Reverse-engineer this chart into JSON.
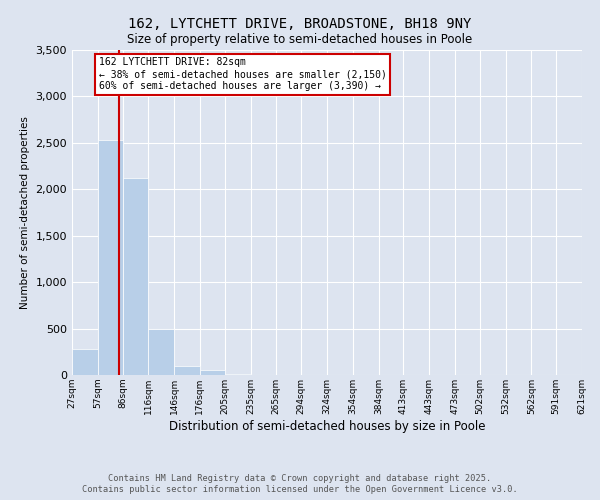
{
  "title": "162, LYTCHETT DRIVE, BROADSTONE, BH18 9NY",
  "subtitle": "Size of property relative to semi-detached houses in Poole",
  "xlabel": "Distribution of semi-detached houses by size in Poole",
  "ylabel": "Number of semi-detached properties",
  "bar_color": "#b8cfe8",
  "background_color": "#dde4f0",
  "grid_color": "#ffffff",
  "marker_color": "#cc0000",
  "marker_value": 82,
  "annotation_text": "162 LYTCHETT DRIVE: 82sqm\n← 38% of semi-detached houses are smaller (2,150)\n60% of semi-detached houses are larger (3,390) →",
  "annotation_box_color": "#ffffff",
  "annotation_edge_color": "#cc0000",
  "footer_text": "Contains HM Land Registry data © Crown copyright and database right 2025.\nContains public sector information licensed under the Open Government Licence v3.0.",
  "bin_edges": [
    27,
    57,
    86,
    116,
    146,
    176,
    205,
    235,
    265,
    294,
    324,
    354,
    384,
    413,
    443,
    473,
    502,
    532,
    562,
    591,
    621
  ],
  "bin_labels": [
    "27sqm",
    "57sqm",
    "86sqm",
    "116sqm",
    "146sqm",
    "176sqm",
    "205sqm",
    "235sqm",
    "265sqm",
    "294sqm",
    "324sqm",
    "354sqm",
    "384sqm",
    "413sqm",
    "443sqm",
    "473sqm",
    "502sqm",
    "532sqm",
    "562sqm",
    "591sqm",
    "621sqm"
  ],
  "counts": [
    280,
    2530,
    2120,
    500,
    100,
    50,
    10,
    5,
    3,
    2,
    1,
    1,
    0,
    0,
    0,
    0,
    0,
    0,
    0,
    0
  ],
  "ylim": [
    0,
    3500
  ],
  "yticks": [
    0,
    500,
    1000,
    1500,
    2000,
    2500,
    3000,
    3500
  ]
}
